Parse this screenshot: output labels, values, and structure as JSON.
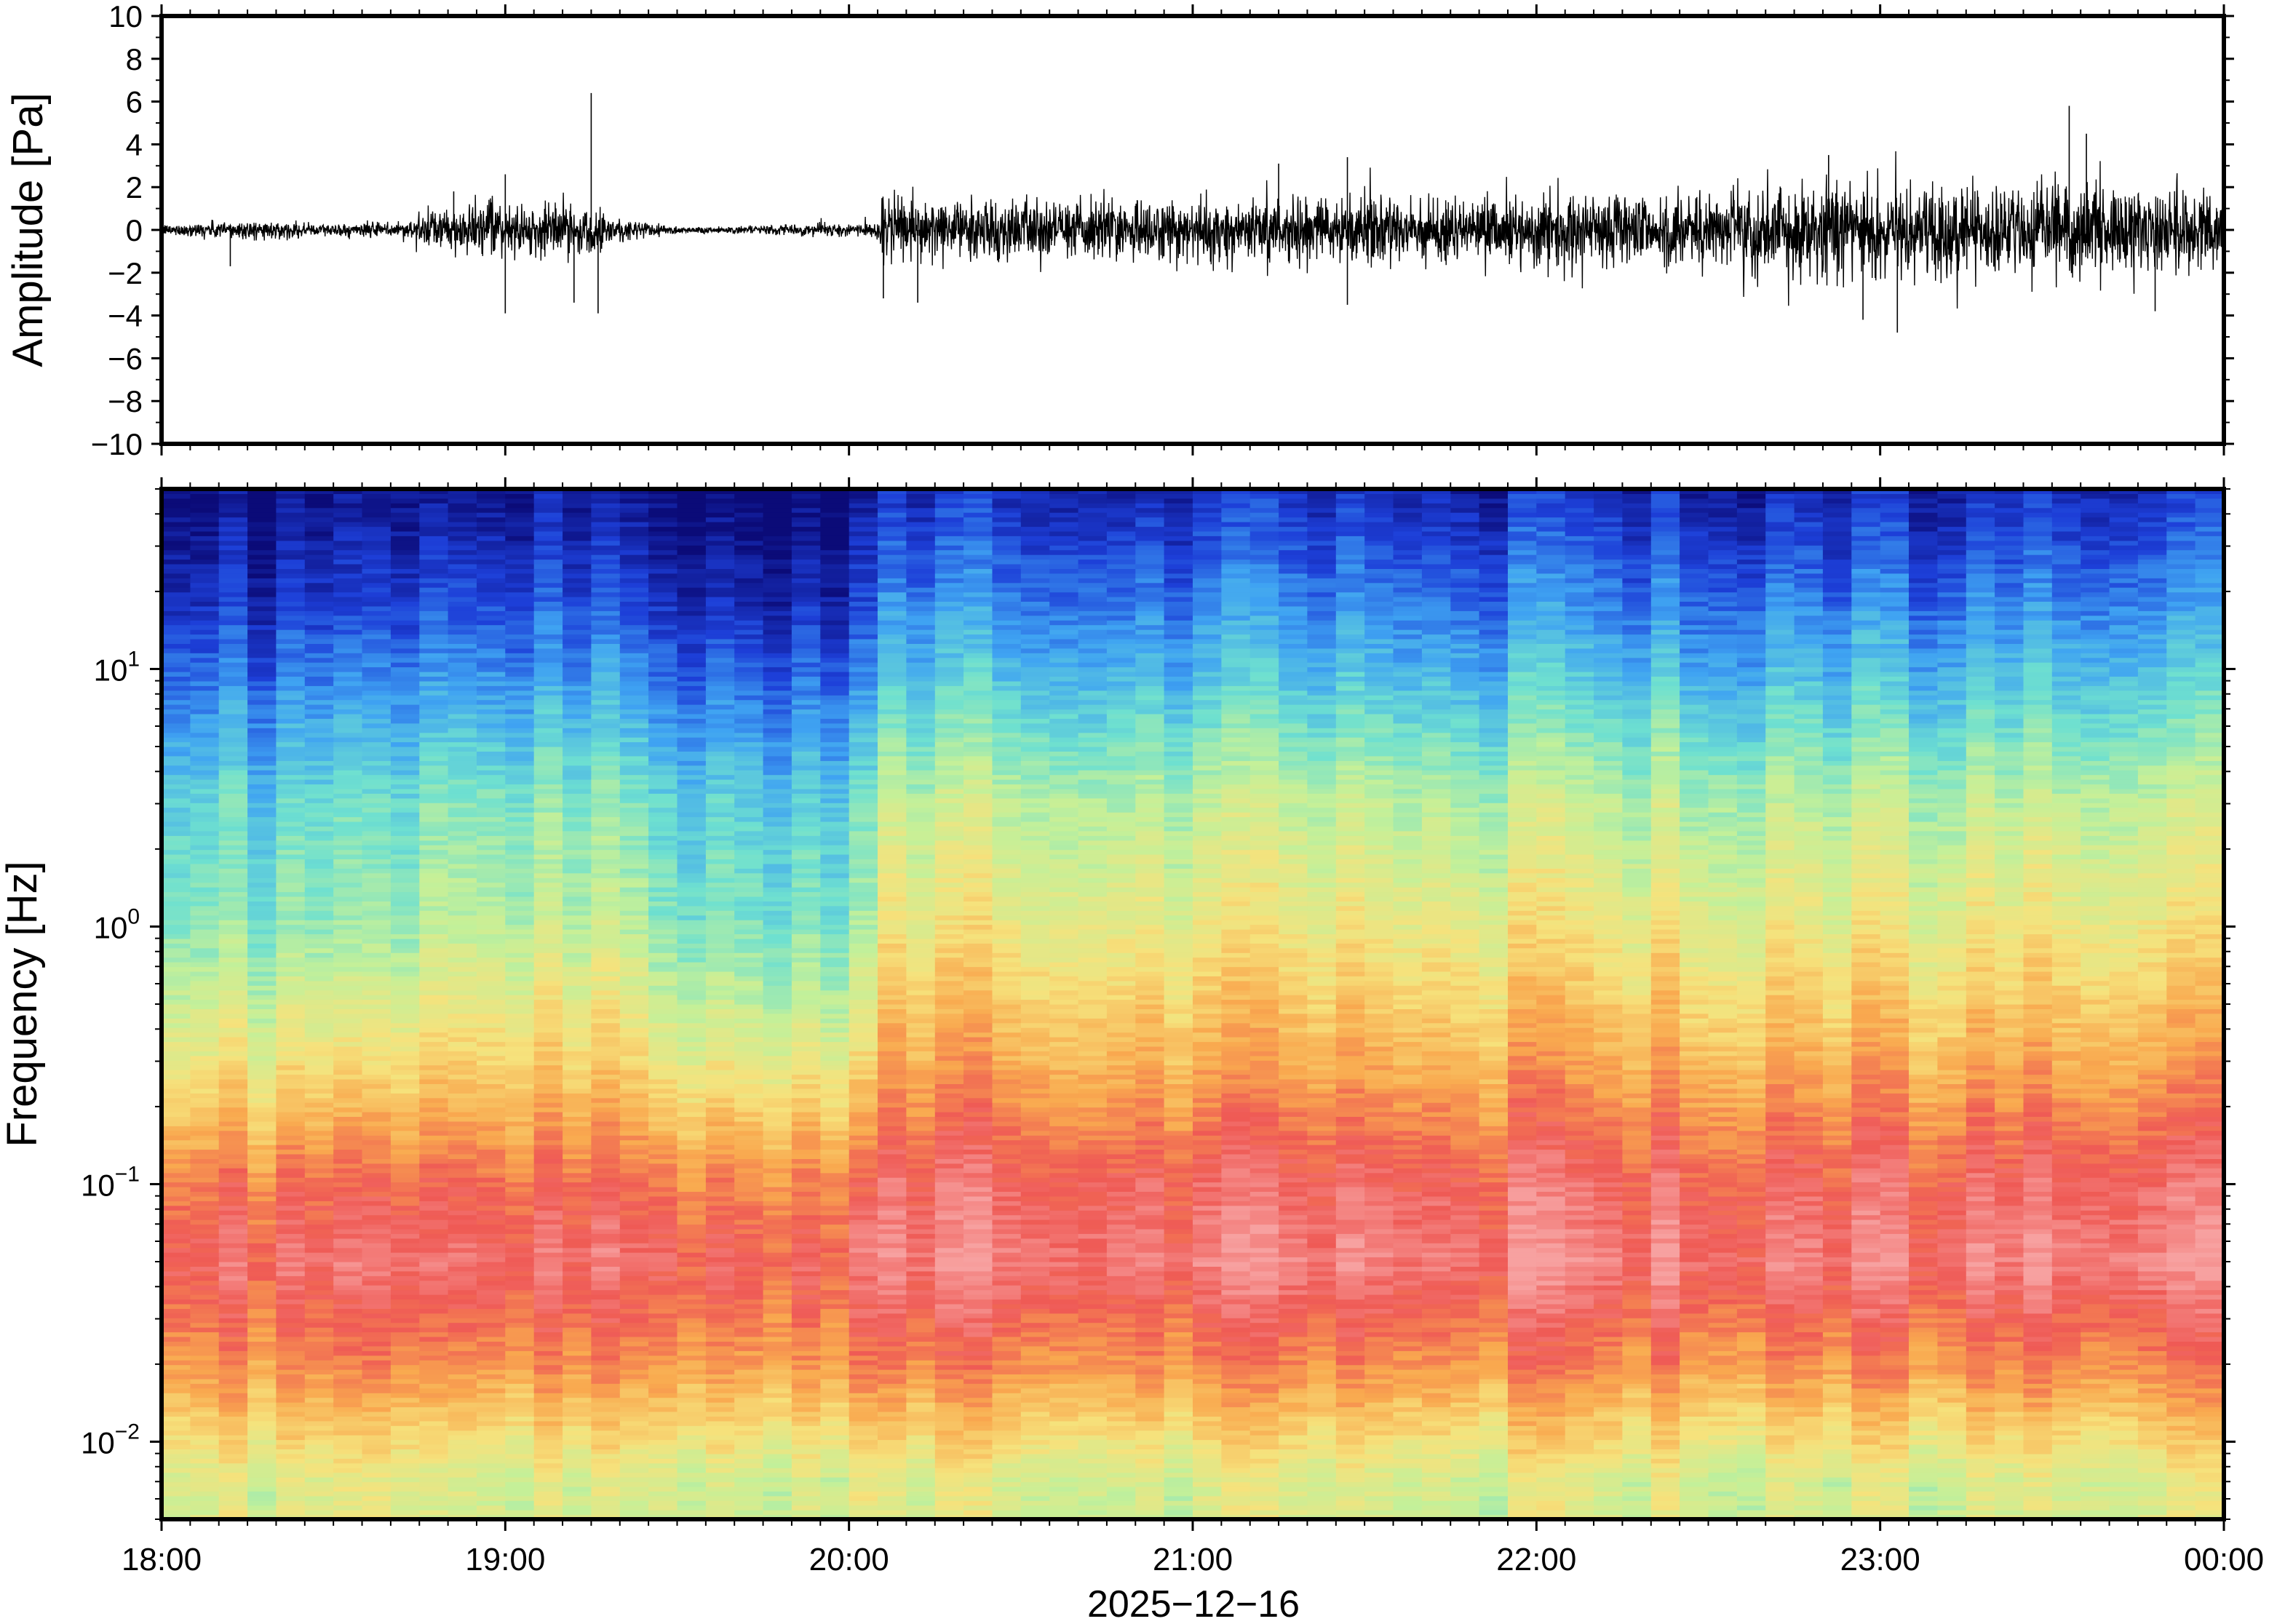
{
  "chart_data": [
    {
      "type": "line",
      "panel": "waveform",
      "ylabel": "Amplitude [Pa]",
      "ylim": [
        -10,
        10
      ],
      "yticks": [
        10,
        8,
        6,
        4,
        2,
        0,
        -2,
        -4,
        -6,
        -8,
        -10
      ],
      "ytick_labels": [
        "10",
        "8",
        "6",
        "4",
        "2",
        "0",
        "−2",
        "−4",
        "−6",
        "−8",
        "−10"
      ],
      "x_range": [
        "2025-12-16 18:00",
        "2025-12-17 00:00"
      ],
      "line_color": "#000000",
      "envelope": {
        "time_hours": [
          18.0,
          18.2,
          18.5,
          18.7,
          18.8,
          18.95,
          19.05,
          19.15,
          19.25,
          19.35,
          19.5,
          19.7,
          19.9,
          20.08,
          20.1,
          20.5,
          21.0,
          21.5,
          22.0,
          22.5,
          22.8,
          23.0,
          23.3,
          23.6,
          24.0
        ],
        "half_width_pa": [
          0.2,
          0.4,
          0.25,
          0.35,
          0.8,
          1.1,
          0.9,
          1.2,
          0.9,
          0.5,
          0.15,
          0.15,
          0.25,
          0.3,
          1.3,
          1.2,
          1.3,
          1.3,
          1.4,
          1.6,
          1.9,
          2.0,
          1.8,
          1.8,
          1.7
        ]
      },
      "peaks": [
        {
          "time_hours": 18.2,
          "value": -1.7
        },
        {
          "time_hours": 18.85,
          "value": 1.8
        },
        {
          "time_hours": 19.0,
          "value": -3.9
        },
        {
          "time_hours": 19.0,
          "value": 2.6
        },
        {
          "time_hours": 19.2,
          "value": -3.4
        },
        {
          "time_hours": 19.25,
          "value": 6.4
        },
        {
          "time_hours": 19.27,
          "value": -3.9
        },
        {
          "time_hours": 20.1,
          "value": -3.2
        },
        {
          "time_hours": 20.2,
          "value": -3.4
        },
        {
          "time_hours": 21.25,
          "value": 3.1
        },
        {
          "time_hours": 21.45,
          "value": 3.4
        },
        {
          "time_hours": 21.45,
          "value": -3.5
        },
        {
          "time_hours": 22.85,
          "value": 3.5
        },
        {
          "time_hours": 22.95,
          "value": -4.2
        },
        {
          "time_hours": 23.05,
          "value": -4.8
        },
        {
          "time_hours": 23.55,
          "value": 5.8
        },
        {
          "time_hours": 23.6,
          "value": 4.5
        },
        {
          "time_hours": 23.8,
          "value": -3.8
        }
      ]
    },
    {
      "type": "heatmap",
      "panel": "spectrogram",
      "ylabel": "Frequency [Hz]",
      "yscale": "log",
      "ylim_hz": [
        0.005,
        50
      ],
      "ytick_labels": [
        {
          "base": "10",
          "exp": "1",
          "value": 10
        },
        {
          "base": "10",
          "exp": "0",
          "value": 1
        },
        {
          "base": "10",
          "exp": "−1",
          "value": 0.1
        },
        {
          "base": "10",
          "exp": "−2",
          "value": 0.01
        }
      ],
      "xlabel": "2025−12−16",
      "xtick_labels": [
        "18:00",
        "19:00",
        "20:00",
        "21:00",
        "22:00",
        "23:00",
        "00:00"
      ],
      "colormap": [
        "#0b0b78",
        "#1d3fd8",
        "#3fa3f2",
        "#6ee0d0",
        "#c4f099",
        "#f6e27c",
        "#f9a94f",
        "#ef5a55",
        "#f7a1a0"
      ],
      "power_model": {
        "frequency_hz": [
          50,
          20,
          10,
          3,
          1,
          0.3,
          0.1,
          0.05,
          0.02,
          0.007
        ],
        "level_quiet_18_to_20": [
          0.0,
          0.08,
          0.18,
          0.35,
          0.42,
          0.6,
          0.82,
          0.9,
          0.78,
          0.55
        ],
        "level_active_20_to_24": [
          0.08,
          0.2,
          0.3,
          0.5,
          0.6,
          0.74,
          0.9,
          0.95,
          0.8,
          0.55
        ]
      }
    }
  ]
}
